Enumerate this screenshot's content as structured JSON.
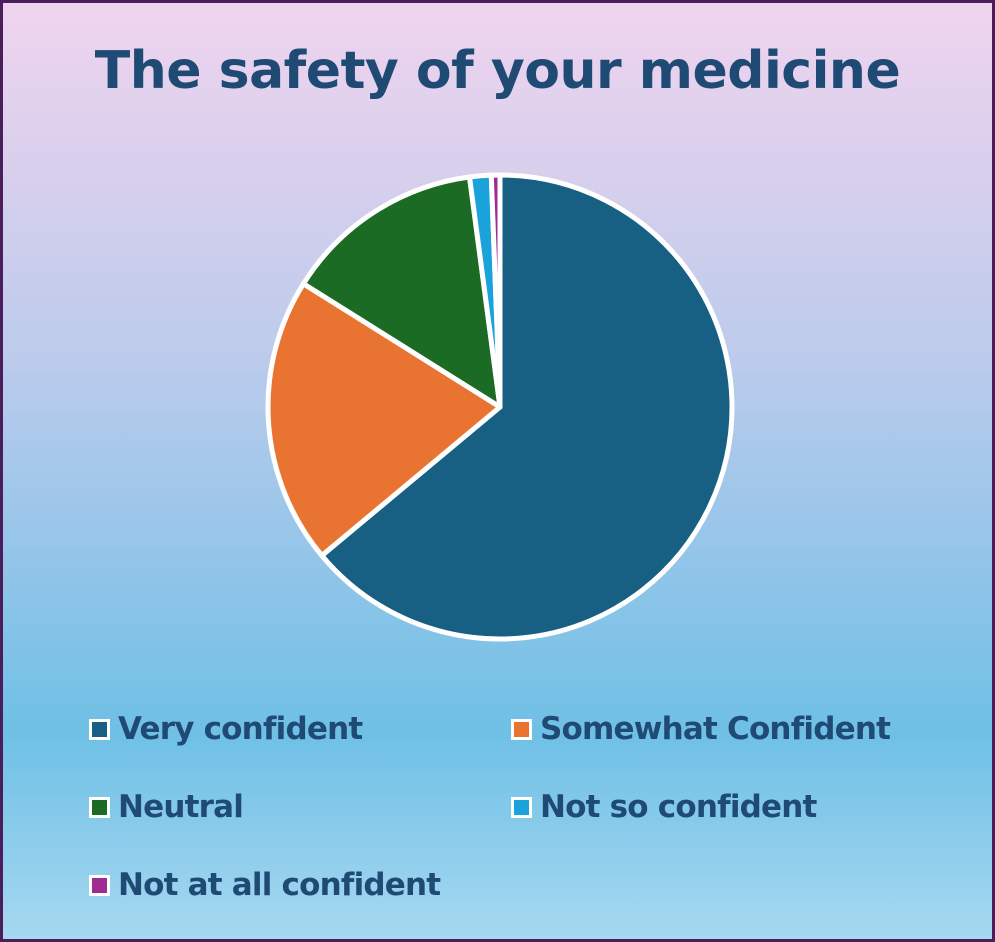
{
  "chart_data": {
    "type": "pie",
    "title": "The safety of your medicine",
    "unit": "%",
    "slices": [
      {
        "name": "Very confident",
        "value": 64,
        "color": "#175f83"
      },
      {
        "name": "Somewhat Confident",
        "value": 20,
        "color": "#e97431"
      },
      {
        "name": "Neutral",
        "value": 14,
        "color": "#1b6b24"
      },
      {
        "name": "Not so confident",
        "value": 1.5,
        "color": "#1aa3db"
      },
      {
        "name": "Not at all confident",
        "value": 0.6,
        "color": "#a02b93"
      }
    ],
    "start_angle": "12 o'clock",
    "direction": "clockwise",
    "legend": {
      "placement": "bottom",
      "columns": 2
    },
    "slice_border_color": "#ffffff"
  }
}
